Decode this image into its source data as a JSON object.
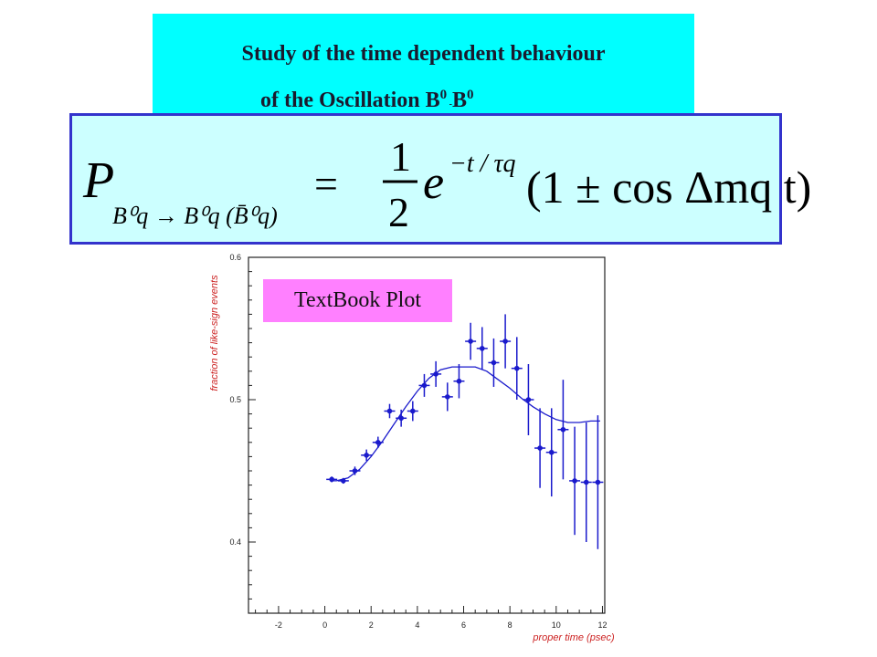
{
  "slide": {
    "title_line_1": "Study of the time dependent behaviour",
    "title_line_2": "of the Oscillation B",
    "title_sup_1": "0",
    "title_dash": " -",
    "title_mid": "B",
    "title_sup_2": "0",
    "textbook_label": "TextBook Plot"
  },
  "formula": {
    "lhs_symbol": "P",
    "lhs_subscript": "B⁰q → B⁰q (B̄⁰q)",
    "equals": "=",
    "fraction_numerator": "1",
    "fraction_denominator": "2",
    "exponential": "e",
    "exponent": "−t / τq",
    "factor": "(1 ± cos Δmq t)"
  },
  "colors": {
    "title_bg": "#00ffff",
    "formula_bg": "#ccffff",
    "formula_border": "#3333cc",
    "label_bg": "#ff80ff",
    "data_color": "#1a1acc",
    "axis_label_color": "#cc2222"
  },
  "chart_data": {
    "type": "scatter",
    "xlabel": "proper time (psec)",
    "ylabel": "fraction of like-sign events",
    "xlim": [
      -3.3,
      12.1
    ],
    "ylim": [
      0.35,
      0.6
    ],
    "xticks": [
      -2,
      0,
      2,
      4,
      6,
      8,
      10,
      12
    ],
    "xtick_labels": [
      "-2",
      "0",
      "2",
      "4",
      "6",
      "8",
      "10",
      "12"
    ],
    "yticks": [
      0.4,
      0.5,
      0.6
    ],
    "ytick_labels": [
      "0.4",
      "0.5",
      "0.6"
    ],
    "grid": false,
    "series": [
      {
        "kind": "points_with_errors",
        "x": [
          0.3,
          0.8,
          1.3,
          1.8,
          2.3,
          2.8,
          3.3,
          3.8,
          4.3,
          4.8,
          5.3,
          5.8,
          6.3,
          6.8,
          7.3,
          7.8,
          8.3,
          8.8,
          9.3,
          9.8,
          10.3,
          10.8,
          11.3,
          11.8
        ],
        "y": [
          0.444,
          0.443,
          0.45,
          0.461,
          0.47,
          0.492,
          0.487,
          0.492,
          0.51,
          0.518,
          0.502,
          0.513,
          0.541,
          0.536,
          0.526,
          0.541,
          0.522,
          0.5,
          0.466,
          0.463,
          0.479,
          0.443,
          0.442,
          0.442
        ],
        "yerr": [
          0.002,
          0.002,
          0.003,
          0.004,
          0.004,
          0.005,
          0.006,
          0.007,
          0.008,
          0.009,
          0.01,
          0.012,
          0.013,
          0.015,
          0.017,
          0.019,
          0.022,
          0.025,
          0.028,
          0.031,
          0.035,
          0.038,
          0.042,
          0.047
        ]
      },
      {
        "kind": "curve",
        "x": [
          0.3,
          0.5,
          1.0,
          1.5,
          2.0,
          2.5,
          3.0,
          3.5,
          4.0,
          4.5,
          5.0,
          5.5,
          6.0,
          6.5,
          7.0,
          7.5,
          8.0,
          8.5,
          9.0,
          9.5,
          10.0,
          10.5,
          11.0,
          11.5,
          11.9
        ],
        "y": [
          0.443,
          0.443,
          0.445,
          0.451,
          0.46,
          0.471,
          0.483,
          0.495,
          0.506,
          0.515,
          0.521,
          0.523,
          0.523,
          0.523,
          0.52,
          0.514,
          0.508,
          0.501,
          0.495,
          0.49,
          0.486,
          0.484,
          0.484,
          0.485,
          0.485
        ]
      }
    ]
  }
}
